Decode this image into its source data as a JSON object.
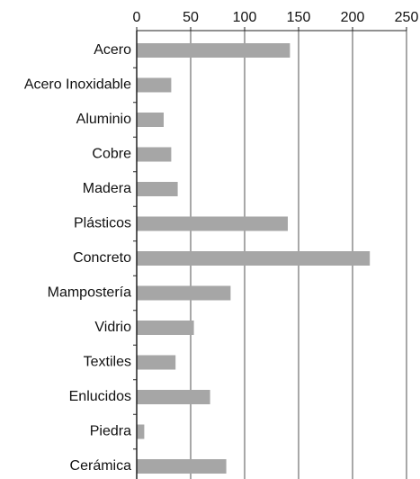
{
  "chart_data": {
    "type": "bar",
    "orientation": "horizontal",
    "categories": [
      "Acero",
      "Acero Inoxidable",
      "Aluminio",
      "Cobre",
      "Madera",
      "Plásticos",
      "Concreto",
      "Mampostería",
      "Vidrio",
      "Textiles",
      "Enlucidos",
      "Piedra",
      "Cerámica"
    ],
    "values": [
      142,
      32,
      25,
      32,
      38,
      140,
      216,
      87,
      53,
      36,
      68,
      7,
      83
    ],
    "color": "#a6a6a6",
    "xlim": [
      0,
      250
    ],
    "xticks": [
      0,
      50,
      100,
      150,
      200,
      250
    ],
    "grid": true
  }
}
